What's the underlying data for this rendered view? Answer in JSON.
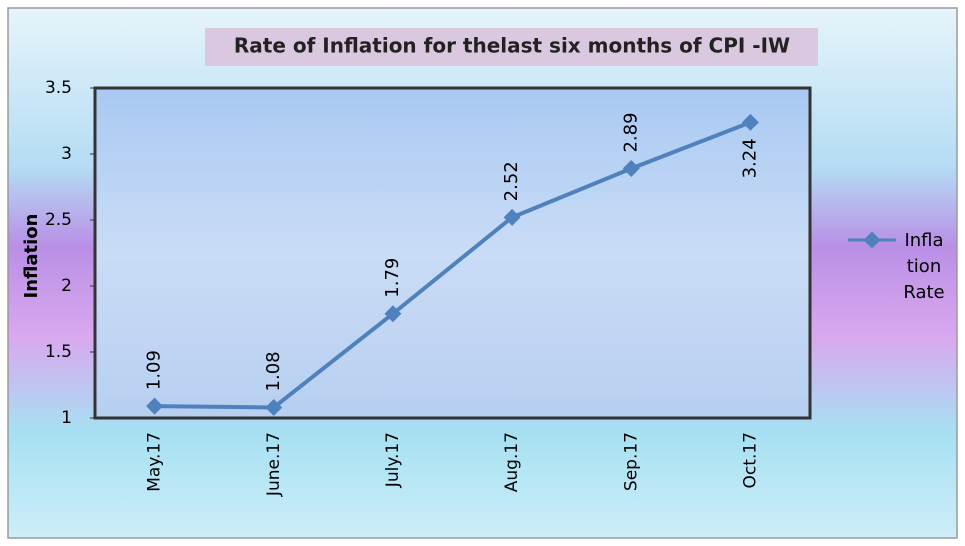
{
  "chart_data": {
    "type": "line",
    "title": "Rate of Inflation for thelast six months of CPI -IW",
    "y_label": "Inflation",
    "categories": [
      "May.17",
      "June.17",
      "July.17",
      "Aug.17",
      "Sep.17",
      "Oct.17"
    ],
    "series": [
      {
        "name": "Inflation Rate",
        "color": "#4f81bd",
        "values": [
          1.09,
          1.08,
          1.79,
          2.52,
          2.89,
          3.24
        ]
      }
    ],
    "ylim": [
      1,
      3.5
    ],
    "yticks": [
      1,
      1.5,
      2,
      2.5,
      3,
      3.5
    ],
    "legend": "right"
  }
}
